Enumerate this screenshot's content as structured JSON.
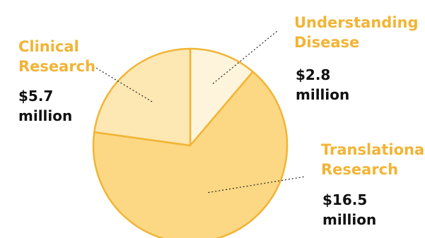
{
  "chart_data": {
    "type": "pie",
    "categories": [
      "Understanding Disease",
      "Translational Research",
      "Clinical Research"
    ],
    "values": [
      2.8,
      16.5,
      5.7
    ],
    "value_labels": [
      "$2.8 million",
      "$16.5 million",
      "$5.7 million"
    ],
    "label_lines": {
      "understanding": [
        "Understanding",
        "Disease"
      ],
      "translational": [
        "Translational",
        "Research"
      ],
      "clinical": [
        "Clinical",
        "Research"
      ]
    },
    "value_lines": {
      "understanding": [
        "$2.8",
        "million"
      ],
      "translational": [
        "$16.5",
        "million"
      ],
      "clinical": [
        "$5.7",
        "million"
      ]
    },
    "title": "",
    "legend": "none",
    "colors": [
      "#fef4dc",
      "#fcd884",
      "#fde7b3"
    ],
    "stroke_color": "#f2b435",
    "label_color": "#f2b435",
    "value_color": "#111111"
  }
}
